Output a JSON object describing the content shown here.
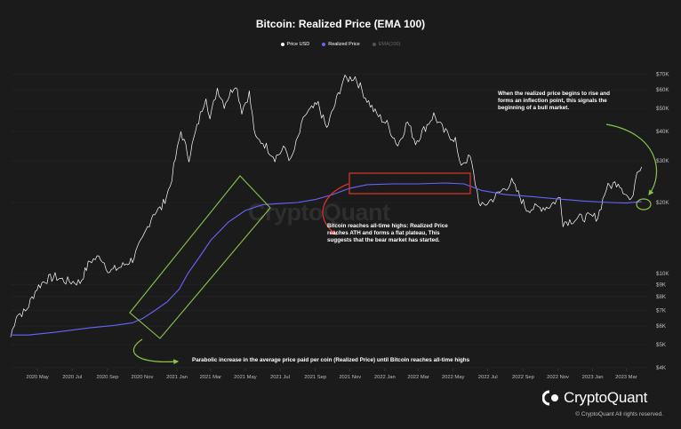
{
  "chart_data": {
    "type": "line",
    "title": "Bitcoin: Realized Price (EMA 100)",
    "yscale": "log",
    "ylim": [
      4000,
      72000
    ],
    "xlim": [
      "2020-03-15",
      "2023-04-10"
    ],
    "y_ticks": [
      {
        "label": "$70K",
        "v": 70000
      },
      {
        "label": "$60K",
        "v": 60000
      },
      {
        "label": "$50K",
        "v": 50000
      },
      {
        "label": "$40K",
        "v": 40000
      },
      {
        "label": "$30K",
        "v": 30000
      },
      {
        "label": "$20K",
        "v": 20000
      },
      {
        "label": "$10K",
        "v": 10000
      },
      {
        "label": "$9K",
        "v": 9000
      },
      {
        "label": "$8K",
        "v": 8000
      },
      {
        "label": "$7K",
        "v": 7000
      },
      {
        "label": "$6K",
        "v": 6000
      },
      {
        "label": "$5K",
        "v": 5000
      },
      {
        "label": "$4K",
        "v": 4000
      }
    ],
    "x_ticks": [
      {
        "label": "2020 May",
        "d": "2020-05-01"
      },
      {
        "label": "2020 Jul",
        "d": "2020-07-01"
      },
      {
        "label": "2020 Sep",
        "d": "2020-09-01"
      },
      {
        "label": "2020 Nov",
        "d": "2020-11-01"
      },
      {
        "label": "2021 Jan",
        "d": "2021-01-01"
      },
      {
        "label": "2021 Mar",
        "d": "2021-03-01"
      },
      {
        "label": "2021 May",
        "d": "2021-05-01"
      },
      {
        "label": "2021 Jul",
        "d": "2021-07-01"
      },
      {
        "label": "2021 Sep",
        "d": "2021-09-01"
      },
      {
        "label": "2021 Nov",
        "d": "2021-11-01"
      },
      {
        "label": "2022 Jan",
        "d": "2022-01-01"
      },
      {
        "label": "2022 Mar",
        "d": "2022-03-01"
      },
      {
        "label": "2022 May",
        "d": "2022-05-01"
      },
      {
        "label": "2022 Jul",
        "d": "2022-07-01"
      },
      {
        "label": "2022 Sep",
        "d": "2022-09-01"
      },
      {
        "label": "2022 Nov",
        "d": "2022-11-01"
      },
      {
        "label": "2023 Jan",
        "d": "2023-01-01"
      },
      {
        "label": "2023 Mar",
        "d": "2023-03-01"
      }
    ],
    "series": [
      {
        "name": "Price USD",
        "color": "#ffffff",
        "points": [
          [
            "2020-03-15",
            5400
          ],
          [
            "2020-03-25",
            6700
          ],
          [
            "2020-04-10",
            6900
          ],
          [
            "2020-04-30",
            8700
          ],
          [
            "2020-05-15",
            9400
          ],
          [
            "2020-06-01",
            9700
          ],
          [
            "2020-06-20",
            9300
          ],
          [
            "2020-07-15",
            9200
          ],
          [
            "2020-08-01",
            11300
          ],
          [
            "2020-08-20",
            11800
          ],
          [
            "2020-09-05",
            10200
          ],
          [
            "2020-09-25",
            10700
          ],
          [
            "2020-10-15",
            11500
          ],
          [
            "2020-11-01",
            13800
          ],
          [
            "2020-11-20",
            18000
          ],
          [
            "2020-12-05",
            19000
          ],
          [
            "2020-12-20",
            23500
          ],
          [
            "2021-01-08",
            40000
          ],
          [
            "2021-01-22",
            31000
          ],
          [
            "2021-02-08",
            44000
          ],
          [
            "2021-02-21",
            57000
          ],
          [
            "2021-02-28",
            45000
          ],
          [
            "2021-03-13",
            61000
          ],
          [
            "2021-03-25",
            52000
          ],
          [
            "2021-04-14",
            64000
          ],
          [
            "2021-04-25",
            49000
          ],
          [
            "2021-05-08",
            58000
          ],
          [
            "2021-05-19",
            37000
          ],
          [
            "2021-06-01",
            36000
          ],
          [
            "2021-06-22",
            31000
          ],
          [
            "2021-07-10",
            34000
          ],
          [
            "2021-07-20",
            29800
          ],
          [
            "2021-08-14",
            47000
          ],
          [
            "2021-09-06",
            52000
          ],
          [
            "2021-09-21",
            41000
          ],
          [
            "2021-10-20",
            66000
          ],
          [
            "2021-11-10",
            68000
          ],
          [
            "2021-11-28",
            56000
          ],
          [
            "2021-12-15",
            48000
          ],
          [
            "2022-01-05",
            43000
          ],
          [
            "2022-01-24",
            35000
          ],
          [
            "2022-02-10",
            44000
          ],
          [
            "2022-02-24",
            36000
          ],
          [
            "2022-03-28",
            47000
          ],
          [
            "2022-04-15",
            40000
          ],
          [
            "2022-05-05",
            37000
          ],
          [
            "2022-05-12",
            29000
          ],
          [
            "2022-05-31",
            31000
          ],
          [
            "2022-06-18",
            19000
          ],
          [
            "2022-07-10",
            20800
          ],
          [
            "2022-08-12",
            24400
          ],
          [
            "2022-09-07",
            18800
          ],
          [
            "2022-10-15",
            19200
          ],
          [
            "2022-11-05",
            21000
          ],
          [
            "2022-11-10",
            16500
          ],
          [
            "2022-12-15",
            17300
          ],
          [
            "2023-01-10",
            17400
          ],
          [
            "2023-01-25",
            23000
          ],
          [
            "2023-02-15",
            24500
          ],
          [
            "2023-03-10",
            20000
          ],
          [
            "2023-03-20",
            27800
          ],
          [
            "2023-03-28",
            28300
          ]
        ]
      },
      {
        "name": "Realized Price",
        "color": "#6b63ff",
        "points": [
          [
            "2020-03-15",
            5500
          ],
          [
            "2020-04-15",
            5500
          ],
          [
            "2020-06-01",
            5650
          ],
          [
            "2020-08-01",
            5900
          ],
          [
            "2020-09-15",
            6050
          ],
          [
            "2020-10-15",
            6200
          ],
          [
            "2020-11-01",
            6450
          ],
          [
            "2020-11-20",
            6900
          ],
          [
            "2020-12-15",
            7600
          ],
          [
            "2021-01-05",
            8600
          ],
          [
            "2021-01-20",
            10000
          ],
          [
            "2021-02-10",
            11800
          ],
          [
            "2021-03-01",
            13800
          ],
          [
            "2021-04-01",
            16500
          ],
          [
            "2021-05-01",
            18500
          ],
          [
            "2021-06-01",
            19600
          ],
          [
            "2021-07-01",
            19800
          ],
          [
            "2021-08-01",
            20000
          ],
          [
            "2021-09-01",
            20600
          ],
          [
            "2021-10-01",
            21600
          ],
          [
            "2021-11-01",
            23000
          ],
          [
            "2021-12-01",
            23800
          ],
          [
            "2022-01-15",
            24000
          ],
          [
            "2022-03-01",
            24000
          ],
          [
            "2022-04-15",
            24200
          ],
          [
            "2022-05-20",
            24000
          ],
          [
            "2022-06-20",
            22500
          ],
          [
            "2022-08-01",
            21600
          ],
          [
            "2022-09-15",
            21200
          ],
          [
            "2022-11-01",
            20700
          ],
          [
            "2022-12-15",
            20300
          ],
          [
            "2023-02-01",
            20000
          ],
          [
            "2023-03-01",
            19900
          ],
          [
            "2023-03-28",
            20200
          ]
        ]
      },
      {
        "name": "EMA(100)",
        "color": "#777777",
        "points": []
      }
    ],
    "legend": {
      "position": "top-center"
    },
    "highlights": [
      {
        "kind": "green-box",
        "label": "Parabolic increase",
        "from": "2020-11",
        "to": "2021-06"
      },
      {
        "kind": "red-box",
        "label": "Flat plateau",
        "from": "2021-11",
        "to": "2022-05"
      },
      {
        "kind": "green-circle",
        "label": "Inflection point",
        "at": "2023-03"
      }
    ]
  },
  "annotations": {
    "inflection": "When the realized price begins to rise and forms an inflection point, this signals the beginning of a bull market.",
    "plateau": "Bitcoin reaches all-time highs: Realized Price reaches ATH and forms a flat plateau, This suggests that the bear market has started.",
    "parabolic": "Parabolic increase in the average price paid per coin (Realized Price) until Bitcoin reaches all-time highs"
  },
  "watermark": "CryptoQuant",
  "brand": {
    "name": "CryptoQuant",
    "copyright": "© CryptoQuant All rights reserved."
  }
}
